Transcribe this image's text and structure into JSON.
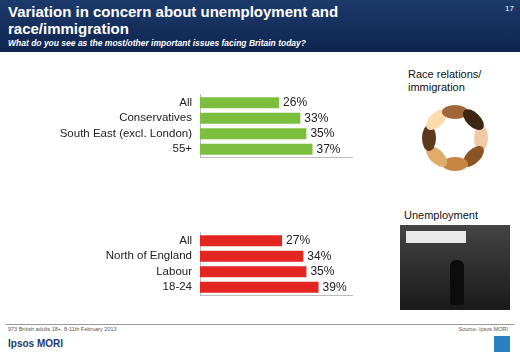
{
  "title": "Variation in concern about unemployment and race/immigration",
  "subtitle": "What do you see as the most/other important issues facing Britain today?",
  "page_number": "17",
  "footnote": "973 British adults 18+, 8-11th February 2013",
  "source": "Source: Ipsos MORI",
  "logo": "Ipsos MORI",
  "chart_data": [
    {
      "type": "bar",
      "orientation": "horizontal",
      "title": "Race relations/ immigration",
      "categories": [
        "All",
        "Conservatives",
        "South East (excl. London)",
        "55+"
      ],
      "values": [
        26,
        33,
        35,
        37
      ],
      "value_labels": [
        "26%",
        "33%",
        "35%",
        "37%"
      ],
      "color": "#7cbf3f",
      "data_labels": true,
      "tick_labels": "y",
      "grid": false,
      "xlim": [
        0,
        50
      ]
    },
    {
      "type": "bar",
      "orientation": "horizontal",
      "title": "Unemployment",
      "categories": [
        "All",
        "North of England",
        "Labour",
        "18-24"
      ],
      "values": [
        27,
        34,
        35,
        39
      ],
      "value_labels": [
        "27%",
        "34%",
        "35%",
        "39%"
      ],
      "color": "#e3261f",
      "data_labels": true,
      "tick_labels": "y",
      "grid": false,
      "xlim": [
        0,
        50
      ]
    }
  ]
}
